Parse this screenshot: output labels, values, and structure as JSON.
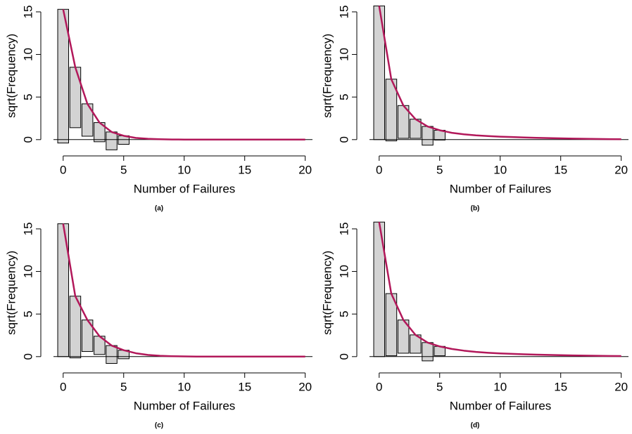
{
  "chart_data": [
    {
      "type": "rootogram",
      "x_label": "Number of Failures",
      "y_label": "sqrt(Frequency)",
      "caption": "(a)",
      "bar_x": [
        0,
        1,
        2,
        3,
        4,
        5
      ],
      "observed": [
        15.7,
        7.1,
        3.8,
        2.25,
        2.1,
        1.0
      ],
      "curve_x": [
        0,
        1,
        2,
        3,
        4,
        5,
        6,
        7,
        8,
        9,
        10,
        11,
        12,
        13,
        14,
        15,
        16,
        17,
        18,
        19,
        20
      ],
      "fitted": [
        15.3,
        8.5,
        4.2,
        2.0,
        0.9,
        0.45,
        0.2,
        0.1,
        0.05,
        0.02,
        0.01,
        0,
        0,
        0,
        0,
        0,
        0,
        0,
        0,
        0,
        0
      ],
      "bar_color": "#d3d3d3",
      "curve_color": "#b2185a",
      "xlim": [
        -0.8,
        20.6
      ],
      "ylim": [
        -1.5,
        15.9
      ],
      "xticks": [
        0,
        5,
        10,
        15,
        20
      ],
      "yticks": [
        0,
        5,
        10,
        15
      ]
    },
    {
      "type": "rootogram",
      "x_label": "Number of Failures",
      "y_label": "sqrt(Frequency)",
      "caption": "(b)",
      "bar_x": [
        0,
        1,
        2,
        3,
        4,
        5
      ],
      "observed": [
        15.7,
        7.25,
        3.85,
        2.25,
        2.2,
        1.15
      ],
      "curve_x": [
        0,
        1,
        2,
        3,
        4,
        5,
        6,
        7,
        8,
        9,
        10,
        11,
        12,
        13,
        14,
        15,
        16,
        17,
        18,
        19,
        20
      ],
      "fitted": [
        15.7,
        7.1,
        4.0,
        2.4,
        1.55,
        1.1,
        0.8,
        0.62,
        0.5,
        0.42,
        0.35,
        0.3,
        0.25,
        0.21,
        0.18,
        0.15,
        0.12,
        0.1,
        0.08,
        0.06,
        0.05
      ],
      "bar_color": "#d3d3d3",
      "curve_color": "#b2185a",
      "xlim": [
        -0.8,
        20.6
      ],
      "ylim": [
        -1.5,
        15.9
      ],
      "xticks": [
        0,
        5,
        10,
        15,
        20
      ],
      "yticks": [
        0,
        5,
        10,
        15
      ]
    },
    {
      "type": "rootogram",
      "x_label": "Number of Failures",
      "y_label": "sqrt(Frequency)",
      "caption": "(c)",
      "bar_x": [
        0,
        1,
        2,
        3,
        4,
        5
      ],
      "observed": [
        15.6,
        7.25,
        3.7,
        2.15,
        2.1,
        1.0
      ],
      "curve_x": [
        0,
        1,
        2,
        3,
        4,
        5,
        6,
        7,
        8,
        9,
        10,
        11,
        12,
        13,
        14,
        15,
        16,
        17,
        18,
        19,
        20
      ],
      "fitted": [
        15.6,
        7.1,
        4.3,
        2.4,
        1.3,
        0.75,
        0.4,
        0.2,
        0.1,
        0.05,
        0.03,
        0.01,
        0,
        0,
        0,
        0,
        0,
        0,
        0,
        0,
        0
      ],
      "bar_color": "#d3d3d3",
      "curve_color": "#b2185a",
      "xlim": [
        -0.8,
        20.6
      ],
      "ylim": [
        -1.5,
        15.9
      ],
      "xticks": [
        0,
        5,
        10,
        15,
        20
      ],
      "yticks": [
        0,
        5,
        10,
        15
      ]
    },
    {
      "type": "rootogram",
      "x_label": "Number of Failures",
      "y_label": "sqrt(Frequency)",
      "caption": "(d)",
      "bar_x": [
        0,
        1,
        2,
        3,
        4,
        5
      ],
      "observed": [
        15.8,
        7.3,
        3.9,
        2.15,
        2.15,
        1.1
      ],
      "curve_x": [
        0,
        1,
        2,
        3,
        4,
        5,
        6,
        7,
        8,
        9,
        10,
        11,
        12,
        13,
        14,
        15,
        16,
        17,
        18,
        19,
        20
      ],
      "fitted": [
        15.8,
        7.4,
        4.3,
        2.55,
        1.65,
        1.2,
        0.9,
        0.7,
        0.55,
        0.45,
        0.38,
        0.32,
        0.27,
        0.23,
        0.2,
        0.17,
        0.14,
        0.12,
        0.1,
        0.08,
        0.07
      ],
      "bar_color": "#d3d3d3",
      "curve_color": "#b2185a",
      "xlim": [
        -0.8,
        20.6
      ],
      "ylim": [
        -1.5,
        15.9
      ],
      "xticks": [
        0,
        5,
        10,
        15,
        20
      ],
      "yticks": [
        0,
        5,
        10,
        15
      ]
    }
  ]
}
